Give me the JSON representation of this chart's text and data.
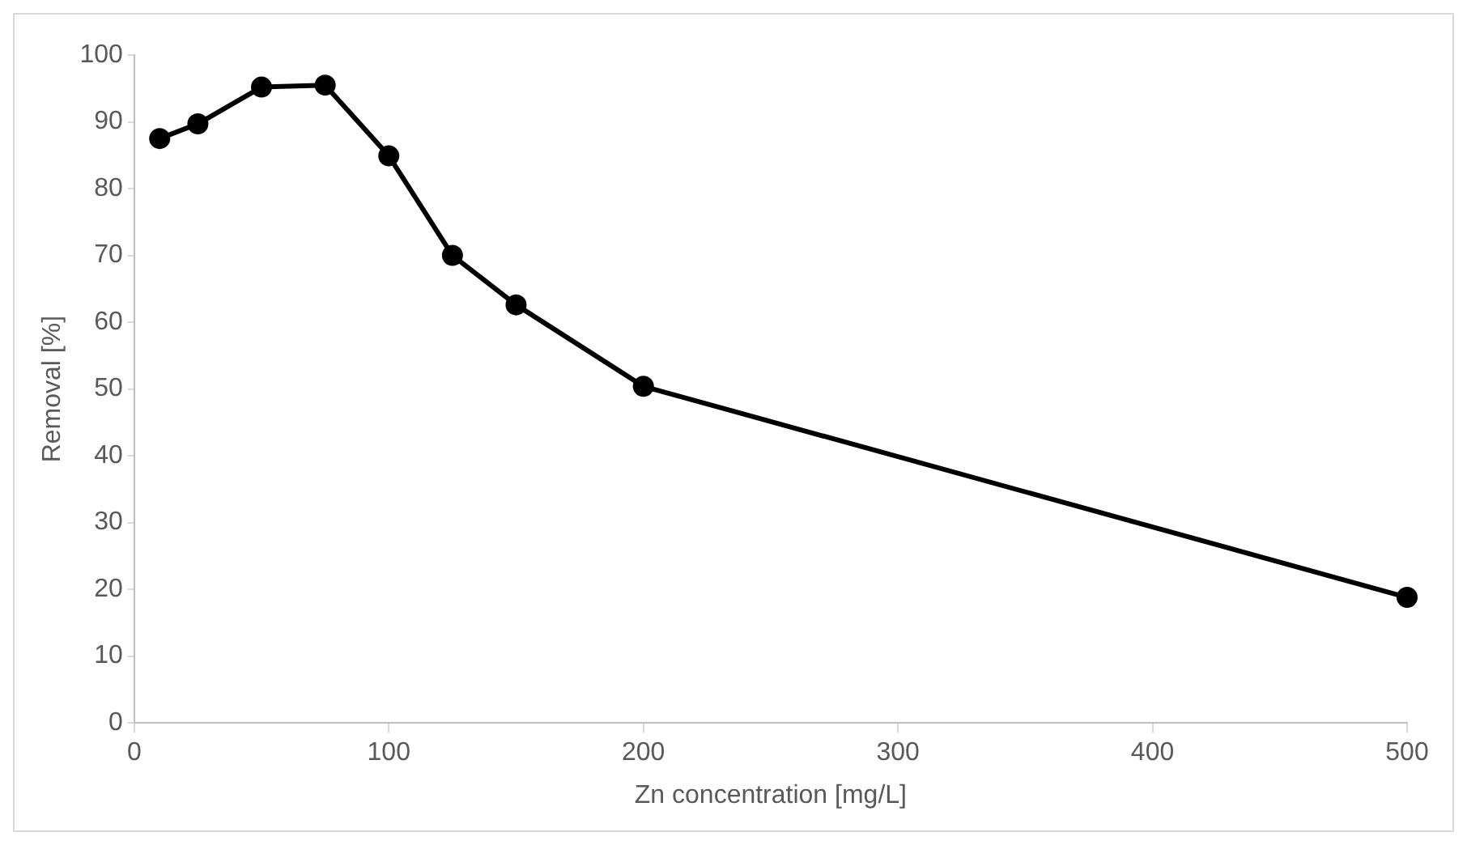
{
  "chart_data": {
    "type": "line",
    "xlabel": "Zn concentration [mg/L]",
    "ylabel": "Removal [%]",
    "x": [
      10,
      25,
      50,
      75,
      100,
      125,
      150,
      200,
      500
    ],
    "series": [
      {
        "color": "#000000",
        "values": [
          87.5,
          89.7,
          95.2,
          95.5,
          84.9,
          70,
          62.6,
          50.4,
          18.8
        ]
      }
    ],
    "xlim": [
      0,
      500
    ],
    "xticks": [
      0,
      100,
      200,
      300,
      400,
      500
    ],
    "ylim": [
      0,
      100
    ],
    "yticks": [
      0,
      10,
      20,
      30,
      40,
      50,
      60,
      70,
      80,
      90,
      100
    ],
    "grid": false,
    "legend": false,
    "marker": "circle",
    "line_style": "solid"
  }
}
